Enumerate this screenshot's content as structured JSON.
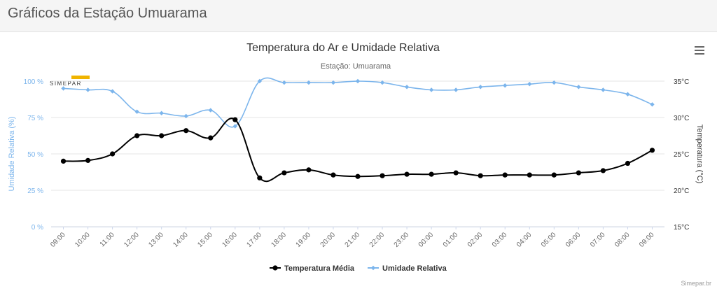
{
  "page": {
    "title": "Gráficos da Estação Umuarama"
  },
  "menu": {
    "icon": "hamburger-menu-icon"
  },
  "logo": {
    "text": "SIMEPAR"
  },
  "credits": "Simepar.br",
  "colors": {
    "humidity": "#7cb5ec",
    "temperature": "#000000",
    "grid": "#e6e6e6",
    "axis_text": "#666666"
  },
  "chart_data": {
    "type": "line",
    "title": "Temperatura do Ar e Umidade Relativa",
    "subtitle": "Estação: Umuarama",
    "categories": [
      "09:00",
      "10:00",
      "11:00",
      "12:00",
      "13:00",
      "14:00",
      "15:00",
      "16:00",
      "17:00",
      "18:00",
      "19:00",
      "20:00",
      "21:00",
      "22:00",
      "23:00",
      "00:00",
      "01:00",
      "02:00",
      "03:00",
      "04:00",
      "05:00",
      "06:00",
      "07:00",
      "08:00",
      "09:00"
    ],
    "y_left": {
      "label": "Umidade Relativa (%)",
      "range": [
        0,
        100
      ],
      "ticks": [
        "0 %",
        "25 %",
        "50 %",
        "75 %",
        "100 %"
      ]
    },
    "y_right": {
      "label": "Temperatura (°C)",
      "range": [
        15,
        35
      ],
      "ticks": [
        "15°C",
        "20°C",
        "25°C",
        "30°C",
        "35°C"
      ]
    },
    "series": [
      {
        "name": "Temperatura Média",
        "axis": "right",
        "marker": "circle",
        "values": [
          24.0,
          24.1,
          25.0,
          27.5,
          27.5,
          28.2,
          27.2,
          29.7,
          21.7,
          22.4,
          22.8,
          22.1,
          21.9,
          22.0,
          22.2,
          22.2,
          22.4,
          22.0,
          22.1,
          22.1,
          22.1,
          22.4,
          22.7,
          23.7,
          25.5
        ]
      },
      {
        "name": "Umidade Relativa",
        "axis": "left",
        "marker": "diamond",
        "values": [
          95,
          94,
          93,
          79,
          78,
          76,
          80,
          69,
          100,
          99,
          99,
          99,
          100,
          99,
          96,
          94,
          94,
          96,
          97,
          98,
          99,
          96,
          94,
          91,
          84
        ]
      }
    ],
    "legend_position": "bottom-center"
  }
}
